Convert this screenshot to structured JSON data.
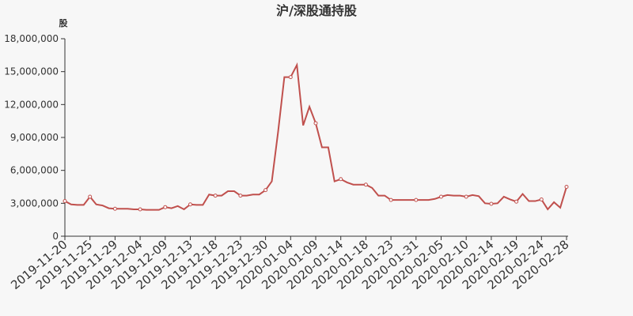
{
  "chart_data": {
    "type": "line",
    "title": "沪/深股通持股",
    "y_label": "股",
    "categories": [
      "2019-11-20",
      null,
      null,
      null,
      "2019-11-25",
      null,
      null,
      null,
      "2019-11-29",
      null,
      null,
      null,
      "2019-12-04",
      null,
      null,
      null,
      "2019-12-09",
      null,
      null,
      null,
      "2019-12-13",
      null,
      null,
      null,
      "2019-12-18",
      null,
      null,
      null,
      "2019-12-23",
      null,
      null,
      null,
      "2019-12-30",
      null,
      null,
      null,
      "2020-01-04",
      null,
      null,
      null,
      "2020-01-09",
      null,
      null,
      null,
      "2020-01-14",
      null,
      null,
      null,
      "2020-01-18",
      null,
      null,
      null,
      "2020-01-23",
      null,
      null,
      null,
      "2020-01-31",
      null,
      null,
      null,
      "2020-02-05",
      null,
      null,
      null,
      "2020-02-10",
      null,
      null,
      null,
      "2020-02-14",
      null,
      null,
      null,
      "2020-02-19",
      null,
      null,
      null,
      "2020-02-24",
      null,
      null,
      null,
      "2020-02-28"
    ],
    "series": [
      {
        "color": "#c0504d",
        "values": [
          3200000,
          2900000,
          2850000,
          2850000,
          3600000,
          2900000,
          2800000,
          2550000,
          2500000,
          2500000,
          2500000,
          2450000,
          2450000,
          2400000,
          2400000,
          2400000,
          2650000,
          2550000,
          2750000,
          2450000,
          2900000,
          2850000,
          2850000,
          3800000,
          3700000,
          3700000,
          4100000,
          4100000,
          3700000,
          3700000,
          3800000,
          3800000,
          4200000,
          5000000,
          9500000,
          14500000,
          14500000,
          15600000,
          10100000,
          11800000,
          10300000,
          8100000,
          8100000,
          5000000,
          5200000,
          4900000,
          4700000,
          4700000,
          4700000,
          4400000,
          3700000,
          3700000,
          3300000,
          3300000,
          3300000,
          3300000,
          3300000,
          3300000,
          3300000,
          3400000,
          3600000,
          3750000,
          3700000,
          3700000,
          3600000,
          3750000,
          3650000,
          3000000,
          2950000,
          3000000,
          3600000,
          3350000,
          3150000,
          3850000,
          3200000,
          3200000,
          3350000,
          2450000,
          3100000,
          2600000,
          4500000
        ]
      }
    ],
    "ylim": [
      0,
      18000000
    ],
    "yticks": [
      0,
      {
        "value": 3000000,
        "label": "3,000,000"
      },
      {
        "value": 6000000,
        "label": "6,000,000"
      },
      {
        "value": 9000000,
        "label": "9,000,000"
      },
      {
        "value": 12000000,
        "label": "12,000,000"
      },
      {
        "value": 15000000,
        "label": "15,000,000"
      },
      {
        "value": 18000000,
        "label": "18,000,000"
      }
    ]
  }
}
